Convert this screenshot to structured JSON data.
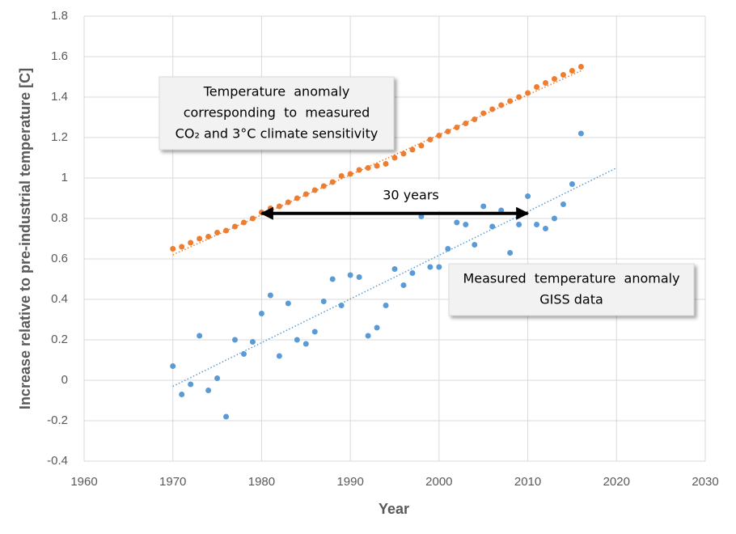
{
  "chart_data": {
    "type": "scatter",
    "x_label": "Year",
    "y_label": "Increase relative to pre-industrial temperature [C]",
    "xlim": [
      1960,
      2030
    ],
    "xticks": [
      1960,
      1970,
      1980,
      1990,
      2000,
      2010,
      2020,
      2030
    ],
    "ylim": [
      -0.4,
      1.8
    ],
    "yticks": [
      -0.4,
      -0.2,
      0,
      0.2,
      0.4,
      0.6,
      0.8,
      1,
      1.2,
      1.4,
      1.6,
      1.8
    ],
    "grid": true,
    "x": [
      1970,
      1971,
      1972,
      1973,
      1974,
      1975,
      1976,
      1977,
      1978,
      1979,
      1980,
      1981,
      1982,
      1983,
      1984,
      1985,
      1986,
      1987,
      1988,
      1989,
      1990,
      1991,
      1992,
      1993,
      1994,
      1995,
      1996,
      1997,
      1998,
      1999,
      2000,
      2001,
      2002,
      2003,
      2004,
      2005,
      2006,
      2007,
      2008,
      2009,
      2010,
      2011,
      2012,
      2013,
      2014,
      2015,
      2016
    ],
    "series": [
      {
        "name": "Temperature anomaly corresponding to measured CO₂ and 3°C climate sensitivity",
        "color": "#ed7d31",
        "values": [
          0.65,
          0.66,
          0.68,
          0.7,
          0.71,
          0.73,
          0.74,
          0.76,
          0.78,
          0.8,
          0.83,
          0.85,
          0.86,
          0.88,
          0.9,
          0.92,
          0.94,
          0.96,
          0.98,
          1.01,
          1.02,
          1.04,
          1.05,
          1.06,
          1.07,
          1.1,
          1.12,
          1.14,
          1.16,
          1.19,
          1.21,
          1.23,
          1.25,
          1.27,
          1.29,
          1.32,
          1.34,
          1.36,
          1.38,
          1.4,
          1.42,
          1.45,
          1.47,
          1.49,
          1.51,
          1.53,
          1.55
        ],
        "trend_x": [
          1970,
          2016
        ],
        "trend_values": [
          0.62,
          1.53
        ],
        "note_lines": [
          "Temperature  anomaly",
          "corresponding  to  measured",
          "CO₂ and 3°C climate sensitivity"
        ]
      },
      {
        "name": "Measured temperature anomaly GISS data",
        "color": "#5b9bd5",
        "values": [
          0.07,
          -0.07,
          -0.02,
          0.22,
          -0.05,
          0.01,
          -0.18,
          0.2,
          0.13,
          0.19,
          0.33,
          0.42,
          0.12,
          0.38,
          0.2,
          0.18,
          0.24,
          0.39,
          0.5,
          0.37,
          0.52,
          0.51,
          0.22,
          0.26,
          0.37,
          0.55,
          0.47,
          0.53,
          0.81,
          0.56,
          0.56,
          0.65,
          0.78,
          0.77,
          0.67,
          0.86,
          0.76,
          0.84,
          0.63,
          0.77,
          0.91,
          0.77,
          0.75,
          0.8,
          0.87,
          0.97,
          1.22
        ],
        "trend_x": [
          1970,
          2020
        ],
        "trend_values": [
          -0.03,
          1.05
        ],
        "note_lines": [
          "Measured  temperature  anomaly",
          "GISS data"
        ]
      }
    ],
    "arrow": {
      "label": "30 years",
      "x": [
        1980,
        2010
      ],
      "y": 0.825
    }
  }
}
